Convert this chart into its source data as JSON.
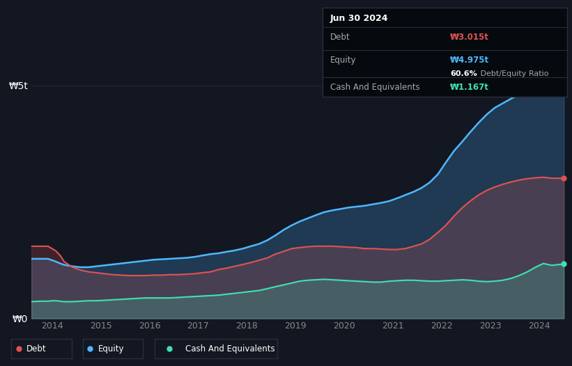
{
  "background_color": "#131722",
  "plot_bg_color": "#131722",
  "grid_color": "#2a2e39",
  "debt_color": "#e05252",
  "equity_color": "#4db8ff",
  "cash_color": "#40e0b0",
  "tooltip_bg": "#050a0e",
  "tooltip_border": "#2a2e39",
  "tooltip_title": "Jun 30 2024",
  "tooltip_debt_label": "Debt",
  "tooltip_debt_value": "₩3.015t",
  "tooltip_equity_label": "Equity",
  "tooltip_equity_value": "₩4.975t",
  "tooltip_ratio_bold": "60.6%",
  "tooltip_ratio_rest": " Debt/Equity Ratio",
  "tooltip_cash_label": "Cash And Equivalents",
  "tooltip_cash_value": "₩1.167t",
  "legend_labels": [
    "Debt",
    "Equity",
    "Cash And Equivalents"
  ],
  "ylabel_w5t": "₩5t",
  "ylabel_w0": "₩0",
  "x_ticks": [
    2014,
    2015,
    2016,
    2017,
    2018,
    2019,
    2020,
    2021,
    2022,
    2023,
    2024
  ],
  "ylim": [
    0,
    5.5
  ],
  "years": [
    2013.58,
    2013.75,
    2013.92,
    2014.0,
    2014.08,
    2014.17,
    2014.25,
    2014.42,
    2014.58,
    2014.75,
    2014.92,
    2015.08,
    2015.25,
    2015.42,
    2015.58,
    2015.75,
    2015.92,
    2016.08,
    2016.25,
    2016.42,
    2016.58,
    2016.75,
    2016.92,
    2017.08,
    2017.25,
    2017.42,
    2017.58,
    2017.75,
    2017.92,
    2018.08,
    2018.25,
    2018.42,
    2018.58,
    2018.75,
    2018.92,
    2019.08,
    2019.25,
    2019.42,
    2019.58,
    2019.75,
    2019.92,
    2020.08,
    2020.25,
    2020.42,
    2020.58,
    2020.75,
    2020.92,
    2021.08,
    2021.25,
    2021.42,
    2021.58,
    2021.75,
    2021.92,
    2022.08,
    2022.25,
    2022.42,
    2022.58,
    2022.75,
    2022.92,
    2023.08,
    2023.25,
    2023.42,
    2023.58,
    2023.75,
    2023.92,
    2024.08,
    2024.25,
    2024.42,
    2024.5
  ],
  "equity": [
    1.28,
    1.28,
    1.28,
    1.25,
    1.22,
    1.18,
    1.15,
    1.12,
    1.1,
    1.1,
    1.12,
    1.14,
    1.16,
    1.18,
    1.2,
    1.22,
    1.24,
    1.26,
    1.27,
    1.28,
    1.29,
    1.3,
    1.32,
    1.35,
    1.38,
    1.4,
    1.43,
    1.46,
    1.5,
    1.55,
    1.6,
    1.68,
    1.78,
    1.9,
    2.0,
    2.08,
    2.15,
    2.22,
    2.28,
    2.32,
    2.35,
    2.38,
    2.4,
    2.42,
    2.45,
    2.48,
    2.52,
    2.58,
    2.65,
    2.72,
    2.8,
    2.92,
    3.1,
    3.35,
    3.6,
    3.8,
    4.0,
    4.2,
    4.38,
    4.52,
    4.62,
    4.72,
    4.8,
    4.87,
    4.9,
    4.93,
    4.95,
    4.97,
    4.975
  ],
  "debt": [
    1.55,
    1.55,
    1.55,
    1.5,
    1.45,
    1.35,
    1.22,
    1.1,
    1.04,
    1.0,
    0.98,
    0.96,
    0.94,
    0.93,
    0.92,
    0.92,
    0.92,
    0.93,
    0.93,
    0.94,
    0.94,
    0.95,
    0.96,
    0.98,
    1.0,
    1.05,
    1.08,
    1.12,
    1.16,
    1.2,
    1.25,
    1.3,
    1.38,
    1.44,
    1.5,
    1.52,
    1.54,
    1.55,
    1.55,
    1.55,
    1.54,
    1.53,
    1.52,
    1.5,
    1.5,
    1.49,
    1.48,
    1.48,
    1.5,
    1.55,
    1.6,
    1.7,
    1.85,
    2.0,
    2.2,
    2.38,
    2.52,
    2.65,
    2.75,
    2.82,
    2.88,
    2.93,
    2.97,
    3.0,
    3.02,
    3.03,
    3.01,
    3.01,
    3.015
  ],
  "cash": [
    0.36,
    0.37,
    0.37,
    0.38,
    0.38,
    0.37,
    0.36,
    0.36,
    0.37,
    0.38,
    0.38,
    0.39,
    0.4,
    0.41,
    0.42,
    0.43,
    0.44,
    0.44,
    0.44,
    0.44,
    0.45,
    0.46,
    0.47,
    0.48,
    0.49,
    0.5,
    0.52,
    0.54,
    0.56,
    0.58,
    0.6,
    0.64,
    0.68,
    0.72,
    0.76,
    0.8,
    0.82,
    0.83,
    0.84,
    0.83,
    0.82,
    0.81,
    0.8,
    0.79,
    0.78,
    0.78,
    0.8,
    0.81,
    0.82,
    0.82,
    0.81,
    0.8,
    0.8,
    0.81,
    0.82,
    0.83,
    0.82,
    0.8,
    0.79,
    0.8,
    0.82,
    0.86,
    0.92,
    1.0,
    1.1,
    1.18,
    1.14,
    1.16,
    1.167
  ]
}
